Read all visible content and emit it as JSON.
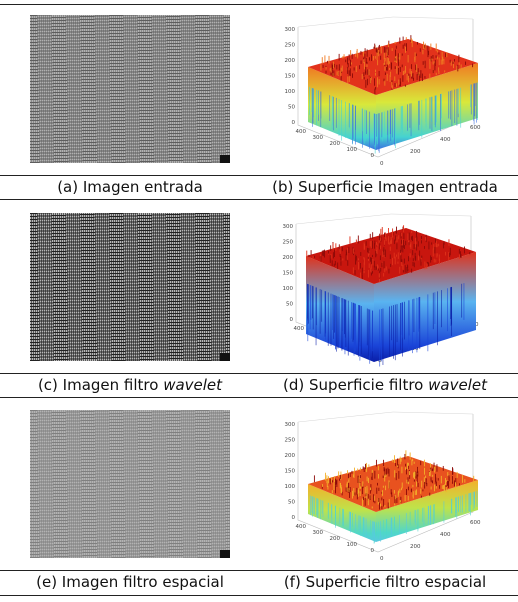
{
  "figures": [
    {
      "image": {
        "name": "entrada",
        "tone": "#8a8a8a",
        "dark": "#5d5d5d",
        "light": "#b1b1b1"
      },
      "surface": {
        "top_fill": "#e2321b",
        "side_top": "#f07a22",
        "side_mid": "#d9e83a",
        "side_bot": "#45d3d1",
        "base": "#3b6fe0"
      },
      "caption_left": {
        "prefix": "(a) Imagen entrada",
        "italic": ""
      },
      "caption_right": {
        "prefix": "(b) Superficie Imagen entrada",
        "italic": ""
      },
      "z_ticks": [
        "300",
        "250",
        "200",
        "150",
        "100",
        "50",
        "0"
      ],
      "y_ticks": [
        "400",
        "300",
        "200",
        "100",
        "0"
      ],
      "x_ticks": [
        "0",
        "200",
        "400",
        "600"
      ]
    },
    {
      "image": {
        "name": "wavelet",
        "tone": "#5a5a5a",
        "dark": "#222222",
        "light": "#b8b8b8"
      },
      "surface": {
        "top_fill": "#c8160e",
        "side_top": "#e0321b",
        "side_mid": "#5ab4f0",
        "side_bot": "#1a44d8",
        "base": "#0a1ea8"
      },
      "caption_left": {
        "prefix": "(c) Imagen filtro ",
        "italic": "wavelet"
      },
      "caption_right": {
        "prefix": "(d) Superficie filtro ",
        "italic": "wavelet"
      },
      "z_ticks": [
        "300",
        "250",
        "200",
        "150",
        "100",
        "50",
        "0"
      ],
      "y_ticks": [
        "400",
        "300",
        "200",
        "100",
        "0"
      ],
      "x_ticks": [
        "0",
        "200",
        "400",
        "600"
      ]
    },
    {
      "image": {
        "name": "espacial",
        "tone": "#9a9a9a",
        "dark": "#7f7f7f",
        "light": "#b3b3b3"
      },
      "surface": {
        "top_fill": "#e8521f",
        "side_top": "#f3b02a",
        "side_mid": "#bfe34a",
        "side_bot": "#4fd7c9",
        "base": "#58c9e0"
      },
      "caption_left": {
        "prefix": "(e) Imagen filtro espacial",
        "italic": ""
      },
      "caption_right": {
        "prefix": "(f) Superficie filtro espacial",
        "italic": ""
      },
      "z_ticks": [
        "300",
        "250",
        "200",
        "150",
        "100",
        "50",
        "0"
      ],
      "y_ticks": [
        "400",
        "300",
        "200",
        "100",
        "0"
      ],
      "x_ticks": [
        "0",
        "200",
        "400",
        "600"
      ]
    }
  ]
}
